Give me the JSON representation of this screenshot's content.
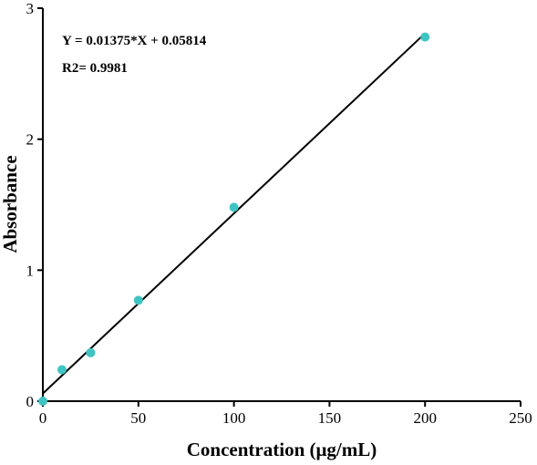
{
  "chart_data": {
    "type": "scatter",
    "title": "",
    "xlabel": "Concentration (μg/mL)",
    "ylabel": "Absorbance",
    "xlim": [
      0,
      250
    ],
    "ylim": [
      0,
      3
    ],
    "x_ticks": [
      0,
      50,
      100,
      150,
      200,
      250
    ],
    "y_ticks": [
      0,
      1,
      2,
      3
    ],
    "grid": false,
    "point_color": "#3fc4c4",
    "line_color": "#000000",
    "series": [
      {
        "x": [
          0,
          10,
          25,
          50,
          100,
          200
        ],
        "y": [
          0.0,
          0.24,
          0.37,
          0.77,
          1.48,
          2.78
        ]
      }
    ],
    "fit": {
      "slope": 0.01375,
      "intercept": 0.05814,
      "x_range": [
        0,
        200
      ]
    },
    "annotations": [
      "Y = 0.01375*X + 0.05814",
      "R2= 0.9981"
    ]
  }
}
